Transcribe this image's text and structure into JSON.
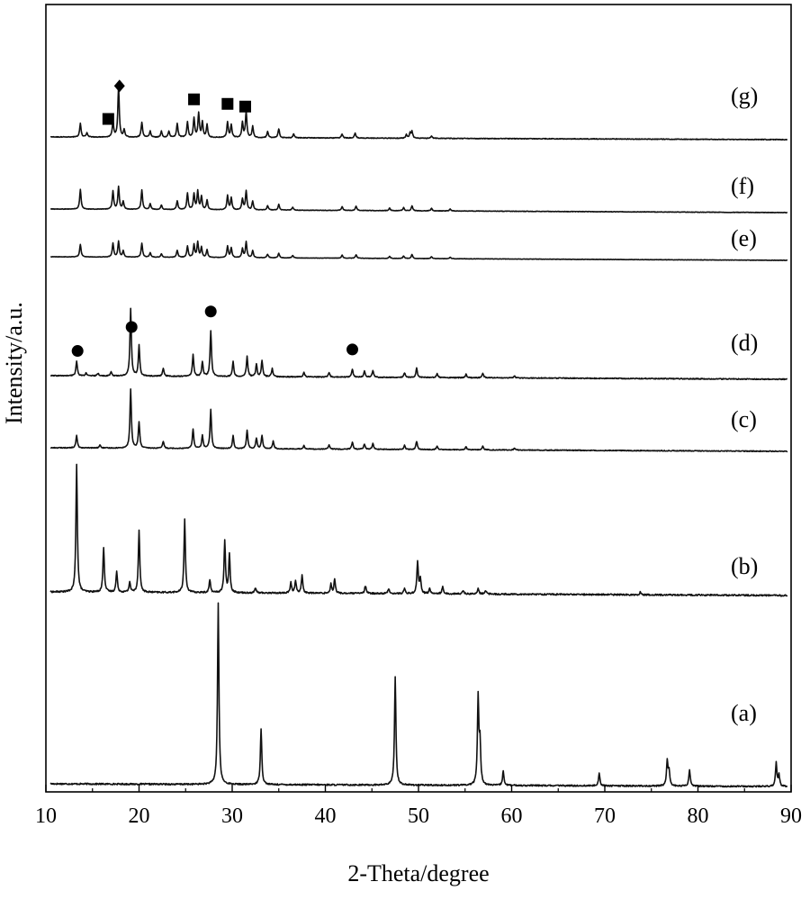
{
  "chart_data": {
    "type": "line",
    "title": "",
    "xlabel": "2-Theta/degree",
    "ylabel": "Intensity/a.u.",
    "xlim": [
      10,
      90
    ],
    "xticks": [
      10,
      20,
      30,
      40,
      50,
      60,
      70,
      80,
      90
    ],
    "yticks_shown": false,
    "grid": false,
    "legend": "none",
    "line_color": "#111111",
    "series": [
      {
        "name": "(a)",
        "noise": 0.004,
        "peaks": [
          [
            28.5,
            1.0
          ],
          [
            33.1,
            0.31
          ],
          [
            47.5,
            0.6
          ],
          [
            56.4,
            0.48
          ],
          [
            56.6,
            0.22
          ],
          [
            59.1,
            0.08
          ],
          [
            69.4,
            0.07
          ],
          [
            76.7,
            0.14
          ],
          [
            76.9,
            0.08
          ],
          [
            79.1,
            0.09
          ],
          [
            88.4,
            0.13
          ],
          [
            88.7,
            0.06
          ]
        ]
      },
      {
        "name": "(b)",
        "noise": 0.006,
        "peaks": [
          [
            13.3,
            1.0
          ],
          [
            16.2,
            0.35
          ],
          [
            17.6,
            0.16
          ],
          [
            19.0,
            0.08
          ],
          [
            20.0,
            0.49
          ],
          [
            24.9,
            0.57
          ],
          [
            27.6,
            0.1
          ],
          [
            29.2,
            0.4
          ],
          [
            29.7,
            0.3
          ],
          [
            32.5,
            0.04
          ],
          [
            36.3,
            0.08
          ],
          [
            36.8,
            0.1
          ],
          [
            37.5,
            0.14
          ],
          [
            40.6,
            0.07
          ],
          [
            41.0,
            0.11
          ],
          [
            44.3,
            0.06
          ],
          [
            46.8,
            0.04
          ],
          [
            48.5,
            0.04
          ],
          [
            49.9,
            0.25
          ],
          [
            50.2,
            0.12
          ],
          [
            51.2,
            0.04
          ],
          [
            52.6,
            0.06
          ],
          [
            54.8,
            0.03
          ],
          [
            56.4,
            0.04
          ],
          [
            57.2,
            0.03
          ],
          [
            73.8,
            0.02
          ]
        ]
      },
      {
        "name": "(c)",
        "noise": 0.007,
        "peaks": [
          [
            13.3,
            0.21
          ],
          [
            15.8,
            0.05
          ],
          [
            19.1,
            1.0
          ],
          [
            20.0,
            0.45
          ],
          [
            22.6,
            0.12
          ],
          [
            25.8,
            0.33
          ],
          [
            26.8,
            0.22
          ],
          [
            27.7,
            0.67
          ],
          [
            30.1,
            0.22
          ],
          [
            31.6,
            0.31
          ],
          [
            32.6,
            0.18
          ],
          [
            33.2,
            0.23
          ],
          [
            34.4,
            0.13
          ],
          [
            37.7,
            0.06
          ],
          [
            40.4,
            0.07
          ],
          [
            42.9,
            0.12
          ],
          [
            44.2,
            0.09
          ],
          [
            45.1,
            0.1
          ],
          [
            48.5,
            0.07
          ],
          [
            49.8,
            0.14
          ],
          [
            52.0,
            0.06
          ],
          [
            55.1,
            0.05
          ],
          [
            56.9,
            0.07
          ],
          [
            60.3,
            0.03
          ]
        ]
      },
      {
        "name": "(d)",
        "noise": 0.007,
        "peaks": [
          [
            13.3,
            0.22
          ],
          [
            14.3,
            0.04
          ],
          [
            15.6,
            0.04
          ],
          [
            17.0,
            0.06
          ],
          [
            19.1,
            1.0
          ],
          [
            20.0,
            0.45
          ],
          [
            22.6,
            0.12
          ],
          [
            25.8,
            0.32
          ],
          [
            26.8,
            0.22
          ],
          [
            27.7,
            0.68
          ],
          [
            30.1,
            0.22
          ],
          [
            31.6,
            0.3
          ],
          [
            32.6,
            0.18
          ],
          [
            33.2,
            0.24
          ],
          [
            34.3,
            0.12
          ],
          [
            37.7,
            0.07
          ],
          [
            40.4,
            0.07
          ],
          [
            42.9,
            0.12
          ],
          [
            44.2,
            0.09
          ],
          [
            45.1,
            0.1
          ],
          [
            48.5,
            0.07
          ],
          [
            49.8,
            0.14
          ],
          [
            52.0,
            0.06
          ],
          [
            55.1,
            0.05
          ],
          [
            56.9,
            0.07
          ],
          [
            60.3,
            0.03
          ]
        ]
      },
      {
        "name": "(e)",
        "noise": 0.008,
        "peaks": [
          [
            13.7,
            0.5
          ],
          [
            17.2,
            0.55
          ],
          [
            17.8,
            0.62
          ],
          [
            18.3,
            0.25
          ],
          [
            20.3,
            0.55
          ],
          [
            21.2,
            0.18
          ],
          [
            22.4,
            0.14
          ],
          [
            24.1,
            0.28
          ],
          [
            25.2,
            0.45
          ],
          [
            25.9,
            0.5
          ],
          [
            26.3,
            0.6
          ],
          [
            26.7,
            0.4
          ],
          [
            27.3,
            0.3
          ],
          [
            29.5,
            0.45
          ],
          [
            29.9,
            0.38
          ],
          [
            31.1,
            0.35
          ],
          [
            31.5,
            0.62
          ],
          [
            32.2,
            0.28
          ],
          [
            33.8,
            0.14
          ],
          [
            35.0,
            0.18
          ],
          [
            36.5,
            0.1
          ],
          [
            41.8,
            0.12
          ],
          [
            43.3,
            0.14
          ],
          [
            46.9,
            0.08
          ],
          [
            48.4,
            0.1
          ],
          [
            49.3,
            0.16
          ],
          [
            51.4,
            0.08
          ],
          [
            53.4,
            0.06
          ]
        ]
      },
      {
        "name": "(f)",
        "noise": 0.008,
        "peaks": [
          [
            13.7,
            0.62
          ],
          [
            17.2,
            0.58
          ],
          [
            17.8,
            0.72
          ],
          [
            18.3,
            0.25
          ],
          [
            20.3,
            0.62
          ],
          [
            21.2,
            0.18
          ],
          [
            22.4,
            0.14
          ],
          [
            24.1,
            0.28
          ],
          [
            25.2,
            0.52
          ],
          [
            25.9,
            0.5
          ],
          [
            26.3,
            0.58
          ],
          [
            26.7,
            0.42
          ],
          [
            27.3,
            0.3
          ],
          [
            29.5,
            0.45
          ],
          [
            29.9,
            0.38
          ],
          [
            31.1,
            0.35
          ],
          [
            31.5,
            0.6
          ],
          [
            32.2,
            0.28
          ],
          [
            33.8,
            0.14
          ],
          [
            35.0,
            0.18
          ],
          [
            36.5,
            0.1
          ],
          [
            41.8,
            0.12
          ],
          [
            43.3,
            0.14
          ],
          [
            46.9,
            0.08
          ],
          [
            48.4,
            0.1
          ],
          [
            49.3,
            0.16
          ],
          [
            51.4,
            0.08
          ],
          [
            53.4,
            0.06
          ]
        ]
      },
      {
        "name": "(g)",
        "noise": 0.007,
        "peaks": [
          [
            13.7,
            0.27
          ],
          [
            14.4,
            0.08
          ],
          [
            17.2,
            0.3
          ],
          [
            17.8,
            1.0
          ],
          [
            18.4,
            0.15
          ],
          [
            20.3,
            0.3
          ],
          [
            21.2,
            0.12
          ],
          [
            22.4,
            0.12
          ],
          [
            23.2,
            0.12
          ],
          [
            24.1,
            0.28
          ],
          [
            25.2,
            0.3
          ],
          [
            25.9,
            0.38
          ],
          [
            26.4,
            0.48
          ],
          [
            26.8,
            0.3
          ],
          [
            27.3,
            0.25
          ],
          [
            29.5,
            0.3
          ],
          [
            29.9,
            0.25
          ],
          [
            31.1,
            0.3
          ],
          [
            31.5,
            0.52
          ],
          [
            32.2,
            0.22
          ],
          [
            33.8,
            0.12
          ],
          [
            35.0,
            0.18
          ],
          [
            36.6,
            0.08
          ],
          [
            41.8,
            0.08
          ],
          [
            43.2,
            0.1
          ],
          [
            48.7,
            0.07
          ],
          [
            49.1,
            0.1
          ],
          [
            49.3,
            0.13
          ],
          [
            51.4,
            0.05
          ]
        ]
      }
    ],
    "markers": [
      {
        "series": "(g)",
        "shape": "square",
        "x": 16.7
      },
      {
        "series": "(g)",
        "shape": "diamond",
        "x": 17.9
      },
      {
        "series": "(g)",
        "shape": "square",
        "x": 25.9
      },
      {
        "series": "(g)",
        "shape": "square",
        "x": 29.5
      },
      {
        "series": "(g)",
        "shape": "square",
        "x": 31.4
      },
      {
        "series": "(d)",
        "shape": "circle",
        "x": 13.4
      },
      {
        "series": "(d)",
        "shape": "circle",
        "x": 19.2
      },
      {
        "series": "(d)",
        "shape": "circle",
        "x": 27.7
      },
      {
        "series": "(d)",
        "shape": "circle",
        "x": 42.9
      }
    ]
  }
}
